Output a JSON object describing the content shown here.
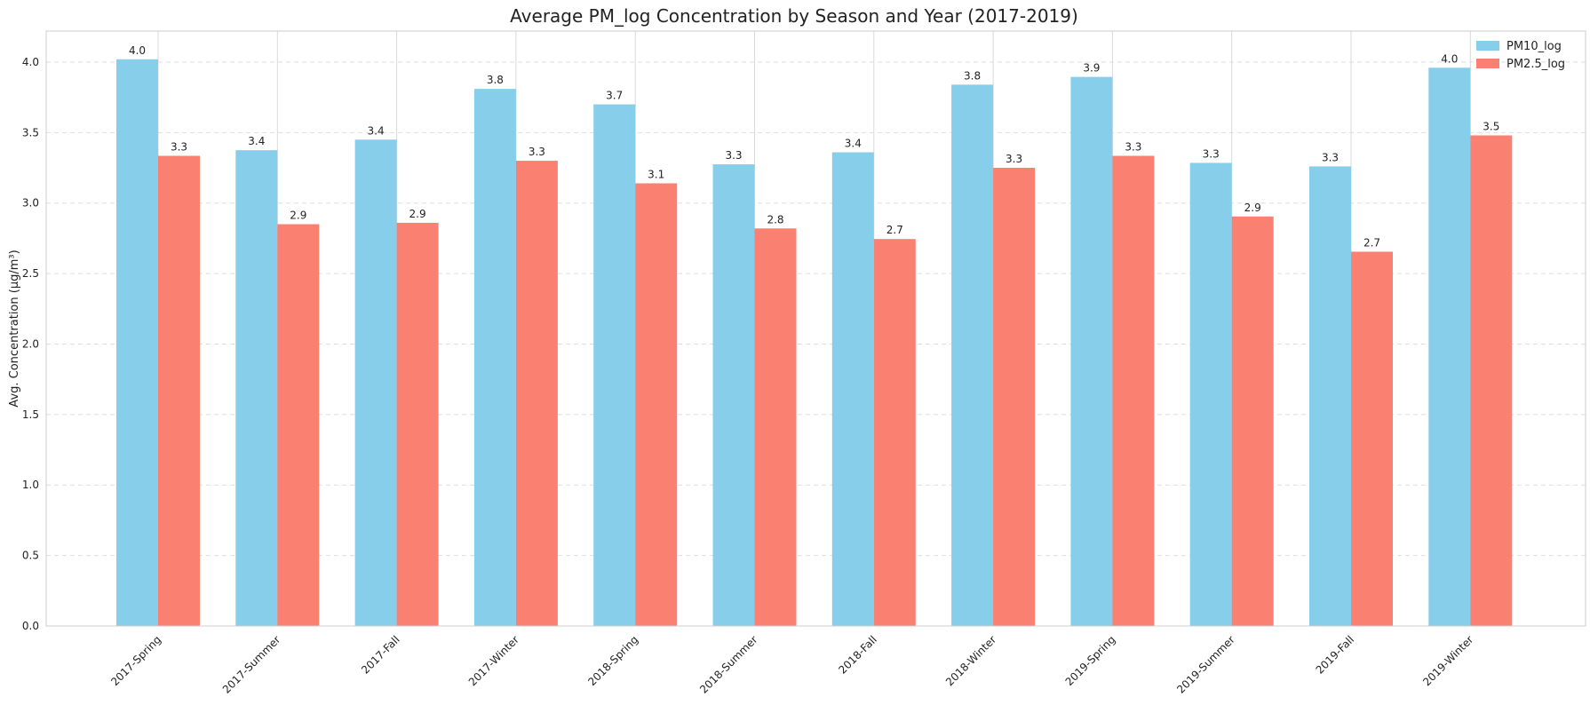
{
  "chart_data": {
    "type": "bar",
    "title": "Average PM_log Concentration by Season and Year (2017-2019)",
    "xlabel": "",
    "ylabel": "Avg. Concentration (μg/m³)",
    "categories": [
      "2017-Spring",
      "2017-Summer",
      "2017-Fall",
      "2017-Winter",
      "2018-Spring",
      "2018-Summer",
      "2018-Fall",
      "2018-Winter",
      "2019-Spring",
      "2019-Summer",
      "2019-Fall",
      "2019-Winter"
    ],
    "series": [
      {
        "name": "PM10_log",
        "color": "#87CEEB",
        "values": [
          4.02,
          3.375,
          3.45,
          3.81,
          3.7,
          3.275,
          3.36,
          3.84,
          3.895,
          3.285,
          3.26,
          3.96
        ],
        "labels": [
          "4.0",
          "3.4",
          "3.4",
          "3.8",
          "3.7",
          "3.3",
          "3.4",
          "3.8",
          "3.9",
          "3.3",
          "3.3",
          "4.0"
        ]
      },
      {
        "name": "PM2.5_log",
        "color": "#FA8072",
        "values": [
          3.335,
          2.85,
          2.86,
          3.3,
          3.14,
          2.82,
          2.745,
          3.25,
          3.335,
          2.905,
          2.655,
          3.48
        ],
        "labels": [
          "3.3",
          "2.9",
          "2.9",
          "3.3",
          "3.1",
          "2.8",
          "2.7",
          "3.3",
          "3.3",
          "2.9",
          "2.7",
          "3.5"
        ]
      }
    ],
    "ylim": [
      0,
      4.22
    ],
    "yticks": [
      "0.0",
      "0.5",
      "1.0",
      "1.5",
      "2.0",
      "2.5",
      "3.0",
      "3.5",
      "4.0"
    ],
    "grid": true,
    "legend": "top-right"
  }
}
